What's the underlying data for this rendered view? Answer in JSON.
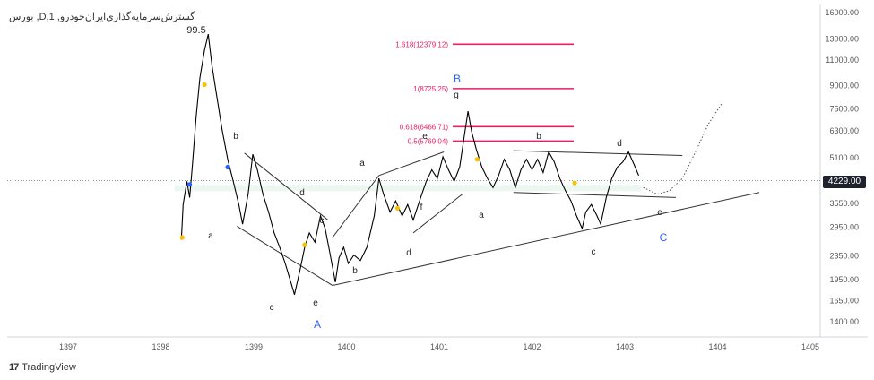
{
  "chart_data": {
    "type": "line",
    "title": "بورس ,D,گسترش‌سرمایه‌گذاری‌ایران‌خودرو, 1",
    "last_price": "4229.00",
    "ylim": [
      1300,
      17000
    ],
    "y_scale": "log",
    "y_ticks": [
      "16000.00",
      "13000.00",
      "11000.00",
      "9000.00",
      "7500.00",
      "6300.00",
      "5100.00",
      "3550.00",
      "2950.00",
      "2350.00",
      "1950.00",
      "1650.00",
      "1400.00"
    ],
    "x_ticks": [
      "1397",
      "1398",
      "1399",
      "1400",
      "1401",
      "1402",
      "1403",
      "1404",
      "1405"
    ],
    "fib_levels": [
      {
        "label": "1.618(12379.12)",
        "value": 12379.12
      },
      {
        "label": "1(8725.25)",
        "value": 8725.25
      },
      {
        "label": "0.618(6466.71)",
        "value": 6466.71
      },
      {
        "label": "0.5(5769.04)",
        "value": 5769.04
      }
    ],
    "annotations": [
      "99.5",
      "b",
      "a",
      "c",
      "d",
      "e",
      "c",
      "a",
      "b",
      "d",
      "e",
      "f",
      "g",
      "a",
      "b",
      "c",
      "d",
      "e"
    ],
    "wave_labels": [
      "A",
      "B",
      "C"
    ],
    "colors": {
      "price": "#000000",
      "fib": "#e91e63",
      "wave_label": "#2962ff",
      "grid": "#e0e3eb"
    }
  },
  "brand": "TradingView"
}
